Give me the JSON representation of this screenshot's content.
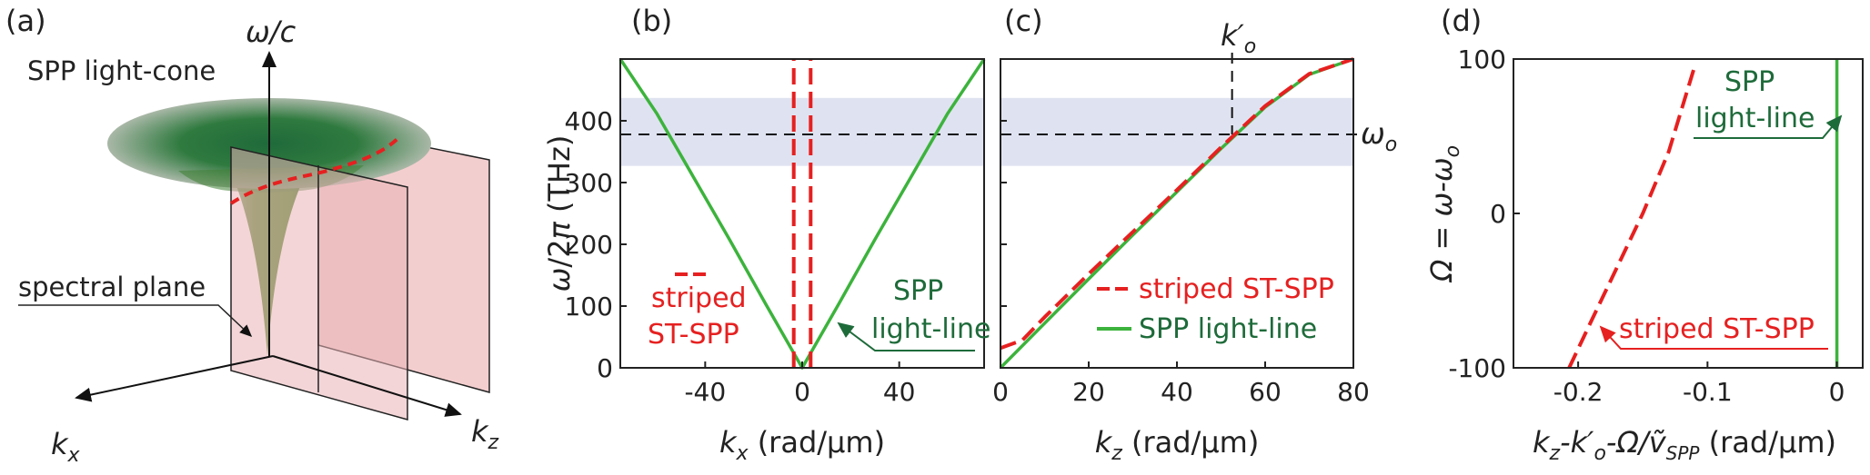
{
  "panels": {
    "a": {
      "label": "(a)",
      "axis_w": "ω/c",
      "axis_kx": "k",
      "axis_kx_sub": "x",
      "axis_kz": "k",
      "axis_kz_sub": "z",
      "cone_label": "SPP light-cone",
      "plane_label": "spectral plane"
    },
    "b": {
      "label": "(b)"
    },
    "c": {
      "label": "(c)"
    },
    "d": {
      "label": "(d)"
    }
  },
  "chart_data": [
    {
      "panel": "b",
      "type": "line",
      "xlabel_var": "k",
      "xlabel_sub": "x",
      "xlabel_unit": " (rad/μm)",
      "ylabel": "ω/2π (THz)",
      "xlim": [
        -75,
        75
      ],
      "ylim": [
        0,
        500
      ],
      "xticks": [
        -40,
        0,
        40
      ],
      "yticks": [
        0,
        100,
        200,
        300,
        400
      ],
      "band": [
        327,
        437
      ],
      "hline": 378,
      "series": [
        {
          "name": "SPP light-line",
          "color": "#3cb33c",
          "style": "solid",
          "points": [
            [
              -75,
              500
            ],
            [
              -60,
              412
            ],
            [
              -45,
              310
            ],
            [
              -30,
              208
            ],
            [
              -15,
              103
            ],
            [
              0,
              0
            ],
            [
              15,
              103
            ],
            [
              30,
              208
            ],
            [
              45,
              310
            ],
            [
              60,
              412
            ],
            [
              75,
              500
            ]
          ]
        },
        {
          "name": "striped ST-SPP",
          "color": "#e62020",
          "style": "dashed",
          "points": [
            [
              -3.5,
              0
            ],
            [
              -3.5,
              500
            ]
          ]
        },
        {
          "name": "striped ST-SPP",
          "color": "#e62020",
          "style": "dashed",
          "points": [
            [
              3.5,
              0
            ],
            [
              3.5,
              500
            ]
          ]
        }
      ],
      "annotations": [
        {
          "text": "striped",
          "color": "#e62020"
        },
        {
          "text": "ST-SPP",
          "color": "#e62020"
        },
        {
          "text": "SPP",
          "color": "#1e6b3a"
        },
        {
          "text": "light-line",
          "color": "#1e6b3a"
        }
      ]
    },
    {
      "panel": "c",
      "type": "line",
      "xlabel_var": "k",
      "xlabel_sub": "z",
      "xlabel_unit": " (rad/μm)",
      "xlim": [
        0,
        80
      ],
      "ylim": [
        0,
        500
      ],
      "xticks": [
        0,
        20,
        40,
        60,
        80
      ],
      "yticks": [
        0,
        100,
        200,
        300,
        400
      ],
      "band": [
        327,
        437
      ],
      "hline": 378,
      "vline": 52.5,
      "vline_label": "k′",
      "vline_label_sub": "o",
      "hline_label": "ω",
      "hline_label_sub": "o",
      "series": [
        {
          "name": "SPP light-line",
          "color": "#3cb33c",
          "style": "solid",
          "points": [
            [
              0,
              0
            ],
            [
              10,
              72
            ],
            [
              20,
              144
            ],
            [
              30,
              215
            ],
            [
              40,
              285
            ],
            [
              50,
              355
            ],
            [
              60,
              422
            ],
            [
              70,
              475
            ],
            [
              80,
              500
            ]
          ]
        },
        {
          "name": "striped ST-SPP",
          "color": "#e62020",
          "style": "dashed",
          "points": [
            [
              0,
              32
            ],
            [
              5,
              45
            ],
            [
              10,
              82
            ],
            [
              20,
              152
            ],
            [
              30,
              220
            ],
            [
              40,
              288
            ],
            [
              50,
              357
            ],
            [
              60,
              424
            ],
            [
              70,
              476
            ],
            [
              80,
              500
            ]
          ]
        }
      ],
      "legend": [
        {
          "text": "striped ST-SPP",
          "color": "#e62020"
        },
        {
          "text": "SPP light-line",
          "color": "#1e6b3a"
        }
      ]
    },
    {
      "panel": "d",
      "type": "line",
      "ylabel": "Ω = ω-ω",
      "ylabel_sub": "o",
      "xlabel_main": "k",
      "xlabel_sub1": "z",
      "xlabel_mid": "-k′",
      "xlabel_sub2": "o",
      "xlabel_tail": "-Ω/ṽ",
      "xlabel_sub3": "SPP",
      "xlabel_unit": " (rad/μm)",
      "xlim": [
        -0.25,
        0.02
      ],
      "ylim": [
        -100,
        100
      ],
      "xticks": [
        -0.2,
        -0.1,
        0
      ],
      "xtick_labels": [
        "-0.2",
        "-0.1",
        "0"
      ],
      "yticks": [
        -100,
        0,
        100
      ],
      "series": [
        {
          "name": "striped ST-SPP",
          "color": "#e62020",
          "style": "dashed",
          "points": [
            [
              -0.207,
              -100
            ],
            [
              -0.19,
              -70
            ],
            [
              -0.17,
              -35
            ],
            [
              -0.15,
              0
            ],
            [
              -0.13,
              40
            ],
            [
              -0.11,
              95
            ]
          ]
        },
        {
          "name": "SPP light-line",
          "color": "#3cb33c",
          "style": "solid",
          "points": [
            [
              0,
              -100
            ],
            [
              0,
              100
            ]
          ]
        }
      ],
      "annotations": [
        {
          "text": "SPP",
          "color": "#1e6b3a"
        },
        {
          "text": "light-line",
          "color": "#1e6b3a"
        },
        {
          "text": "striped ST-SPP",
          "color": "#e62020"
        }
      ]
    }
  ]
}
